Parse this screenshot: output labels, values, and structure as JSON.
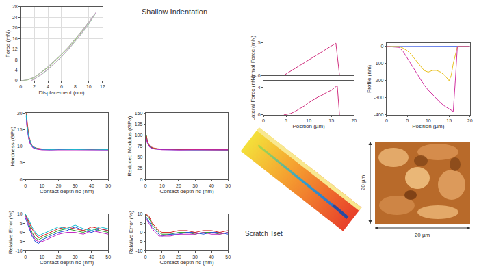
{
  "title": "Shallow Indentation",
  "scratch_test": {
    "label": "Scratch Tset"
  },
  "afm_image": {
    "x_scale": "20 µm",
    "y_scale": "20 µm"
  },
  "chart_data": [
    {
      "type": "line",
      "xlabel": "Displacement (nm)",
      "ylabel": "Force (mN)",
      "xlim": [
        0,
        12
      ],
      "xticks": [
        0,
        2,
        4,
        6,
        8,
        10,
        12
      ],
      "ylim": [
        0,
        28
      ],
      "yticks": [
        0,
        4,
        8,
        12,
        16,
        20,
        24,
        28
      ],
      "grid": true,
      "series": [
        {
          "color": "#8fbf6f",
          "x": [
            0,
            1,
            2,
            3,
            4,
            5,
            6,
            7,
            8,
            9,
            10,
            11
          ],
          "values": [
            0,
            0.3,
            1.2,
            3,
            5,
            7.3,
            9.8,
            12.5,
            15.5,
            18.7,
            22,
            25.5
          ]
        },
        {
          "color": "#b0b0b0",
          "x": [
            0,
            1,
            2,
            3,
            4,
            5,
            6,
            7,
            8,
            9,
            10,
            11.1
          ],
          "values": [
            0,
            0.4,
            1.4,
            3.2,
            5.3,
            7.6,
            10.1,
            12.8,
            15.8,
            19,
            22.4,
            26
          ]
        },
        {
          "color": "#9cc9a8",
          "x": [
            11,
            10,
            9,
            8,
            7,
            6,
            5,
            4,
            3,
            2,
            1.5
          ],
          "values": [
            25.5,
            21.5,
            18,
            14.8,
            11.8,
            9,
            6.5,
            4.2,
            2.2,
            0.6,
            0
          ]
        },
        {
          "color": "#c8a0c8",
          "x": [
            11.1,
            10,
            9,
            8,
            7,
            6,
            5,
            4,
            3,
            2,
            1.6
          ],
          "values": [
            26,
            21.8,
            18.3,
            15,
            12,
            9.2,
            6.7,
            4.4,
            2.4,
            0.7,
            0
          ]
        }
      ]
    },
    {
      "type": "line",
      "xlabel": "Contact depth hc (nm)",
      "ylabel": "Hardness (GPa)",
      "xlim": [
        0,
        50
      ],
      "xticks": [
        0,
        10,
        20,
        30,
        40,
        50
      ],
      "ylim": [
        0,
        20
      ],
      "yticks": [
        0,
        5,
        10,
        15,
        20
      ],
      "x": [
        0.5,
        1,
        2,
        3,
        4,
        5,
        7,
        10,
        15,
        20,
        30,
        40,
        50
      ],
      "series": [
        {
          "color": "#2ca02c",
          "values": [
            20,
            17,
            13,
            11,
            10,
            9.6,
            9.3,
            9.1,
            9.0,
            9.0,
            9.1,
            9.0,
            9.0
          ]
        },
        {
          "color": "#1f4fd8",
          "values": [
            19,
            16,
            12.5,
            10.8,
            10,
            9.5,
            9.2,
            9.0,
            8.9,
            9.0,
            9.0,
            8.9,
            8.9
          ]
        },
        {
          "color": "#d62728",
          "values": [
            20,
            17.5,
            13.5,
            11.5,
            10.3,
            9.8,
            9.4,
            9.2,
            9.1,
            9.2,
            9.1,
            9.1,
            9.0
          ]
        },
        {
          "color": "#c020c0",
          "values": [
            18,
            15.5,
            12.2,
            10.6,
            9.8,
            9.4,
            9.1,
            8.9,
            8.9,
            8.9,
            9.0,
            9.0,
            8.9
          ]
        },
        {
          "color": "#17becf",
          "values": [
            19.5,
            16.5,
            12.8,
            11.2,
            10.1,
            9.7,
            9.3,
            9.1,
            9.0,
            9.1,
            9.0,
            9.1,
            9.0
          ]
        }
      ]
    },
    {
      "type": "line",
      "xlabel": "Contact depth hc (nm)",
      "ylabel": "Reduced Modulus (GPa)",
      "xlim": [
        0,
        50
      ],
      "xticks": [
        0,
        10,
        20,
        30,
        40,
        50
      ],
      "ylim": [
        0,
        150
      ],
      "yticks": [
        0,
        25,
        50,
        75,
        100,
        125,
        150
      ],
      "x": [
        0.5,
        1,
        2,
        3,
        5,
        7,
        10,
        15,
        20,
        30,
        40,
        50
      ],
      "series": [
        {
          "color": "#2ca02c",
          "values": [
            100,
            88,
            78,
            73,
            70,
            69,
            68,
            67.5,
            67,
            67,
            67.5,
            67
          ]
        },
        {
          "color": "#1f4fd8",
          "values": [
            95,
            85,
            76,
            72,
            69,
            68,
            67.5,
            67,
            67,
            66.5,
            67,
            66.5
          ]
        },
        {
          "color": "#d62728",
          "values": [
            98,
            87,
            79,
            74,
            71,
            69.5,
            68.5,
            68,
            67.5,
            67.5,
            67,
            67
          ]
        },
        {
          "color": "#c020c0",
          "values": [
            92,
            83,
            75,
            71,
            69,
            68,
            67,
            67,
            66.5,
            67,
            66.5,
            67
          ]
        }
      ]
    },
    {
      "type": "line",
      "xlabel": "Contact depth hc (nm)",
      "ylabel": "Relative Error (%)",
      "xlim": [
        0,
        50
      ],
      "xticks": [
        0,
        10,
        20,
        30,
        40,
        50
      ],
      "ylim": [
        -10,
        10
      ],
      "yticks": [
        -10,
        -5,
        0,
        5,
        10
      ],
      "x": [
        0,
        2,
        4,
        6,
        8,
        10,
        15,
        20,
        25,
        30,
        35,
        40,
        45,
        50
      ],
      "series": [
        {
          "color": "#2ca02c",
          "values": [
            10,
            5,
            0,
            -3,
            -4,
            -3,
            -1,
            1,
            2,
            1,
            0,
            2,
            1,
            0
          ]
        },
        {
          "color": "#1f4fd8",
          "values": [
            8,
            3,
            -2,
            -5,
            -6,
            -4,
            -2,
            0,
            1,
            3,
            1,
            0,
            2,
            1
          ]
        },
        {
          "color": "#d62728",
          "values": [
            10,
            6,
            2,
            -1,
            -3,
            -2,
            0,
            2,
            3,
            2,
            1,
            3,
            2,
            1
          ]
        },
        {
          "color": "#c020c0",
          "values": [
            9,
            4,
            -1,
            -4,
            -5,
            -5,
            -3,
            -1,
            0,
            0,
            -1,
            1,
            0,
            -1
          ]
        },
        {
          "color": "#17becf",
          "values": [
            10,
            7,
            3,
            0,
            -2,
            -1,
            1,
            3,
            2,
            4,
            2,
            1,
            3,
            2
          ]
        }
      ]
    },
    {
      "type": "line",
      "xlabel": "Contact depth hc (nm)",
      "ylabel": "Relative Error (%)",
      "xlim": [
        0,
        50
      ],
      "xticks": [
        0,
        10,
        20,
        30,
        40,
        50
      ],
      "ylim": [
        -10,
        10
      ],
      "yticks": [
        -10,
        -5,
        0,
        5,
        10
      ],
      "x": [
        0,
        2,
        4,
        6,
        8,
        10,
        15,
        20,
        25,
        30,
        35,
        40,
        45,
        50
      ],
      "series": [
        {
          "color": "#2ca02c",
          "values": [
            10,
            8,
            4,
            2,
            0,
            -1,
            -1,
            0,
            0,
            -1,
            0,
            0,
            -1,
            0
          ]
        },
        {
          "color": "#1f4fd8",
          "values": [
            9,
            6,
            3,
            1,
            -1,
            -2,
            -1,
            -1,
            0,
            0,
            -1,
            0,
            0,
            -1
          ]
        },
        {
          "color": "#d62728",
          "values": [
            10,
            9,
            5,
            3,
            1,
            0,
            0,
            1,
            1,
            0,
            1,
            1,
            0,
            1
          ]
        },
        {
          "color": "#c020c0",
          "values": [
            8,
            5,
            2,
            0,
            -2,
            -2,
            -2,
            -1,
            -1,
            -1,
            0,
            -1,
            -1,
            0
          ]
        }
      ]
    },
    {
      "type": "line",
      "ylabel": "Normal Force (mN)",
      "tick_labels": "y",
      "xlim": [
        0,
        20
      ],
      "ylim": [
        0,
        5
      ],
      "yticks": [
        0,
        5
      ],
      "series": [
        {
          "color": "#d0307f",
          "x": [
            4.5,
            8,
            12,
            16,
            16.8
          ],
          "values": [
            0,
            1.5,
            3.2,
            4.9,
            0
          ]
        }
      ]
    },
    {
      "type": "line",
      "xlabel": "Position (µm)",
      "ylabel": "Lateral Force (mN)",
      "xlim": [
        0,
        20
      ],
      "xticks": [
        0,
        5,
        10,
        15,
        20
      ],
      "ylim": [
        0,
        5
      ],
      "yticks": [
        0,
        4
      ],
      "series": [
        {
          "color": "#d0307f",
          "x": [
            4.5,
            6,
            7,
            8,
            9,
            10,
            11,
            12,
            13,
            14,
            15,
            16,
            16.3,
            16.8
          ],
          "values": [
            0,
            0.2,
            0.5,
            0.9,
            1.3,
            1.8,
            2.2,
            2.6,
            2.9,
            3.3,
            3.6,
            4.1,
            4.3,
            0
          ]
        }
      ]
    },
    {
      "type": "line",
      "xlabel": "Position (µm)",
      "ylabel": "Profile (nm)",
      "xlim": [
        0,
        20
      ],
      "xticks": [
        0,
        5,
        10,
        15,
        20
      ],
      "ylim": [
        -400,
        20
      ],
      "yticks": [
        -400,
        -300,
        -200,
        -100,
        0
      ],
      "series": [
        {
          "color": "#3050e0",
          "x": [
            0,
            5,
            10,
            15,
            20
          ],
          "values": [
            0,
            1,
            2,
            2,
            1
          ]
        },
        {
          "color": "#e8c020",
          "x": [
            0,
            3,
            4,
            5,
            6,
            7,
            8,
            9,
            10,
            11,
            12,
            13,
            14,
            15,
            15.5,
            16,
            17,
            20
          ],
          "values": [
            0,
            0,
            -10,
            -25,
            -50,
            -80,
            -110,
            -140,
            -150,
            -140,
            -140,
            -150,
            -170,
            -200,
            -170,
            -100,
            0,
            0
          ]
        },
        {
          "color": "#d0309f",
          "x": [
            0,
            3,
            4,
            5,
            6,
            7,
            8,
            9,
            10,
            11,
            12,
            13,
            14,
            15,
            16,
            16.5,
            17,
            20
          ],
          "values": [
            0,
            -5,
            -30,
            -70,
            -110,
            -150,
            -190,
            -225,
            -255,
            -280,
            -305,
            -330,
            -350,
            -365,
            -380,
            -200,
            0,
            0
          ]
        }
      ]
    }
  ]
}
